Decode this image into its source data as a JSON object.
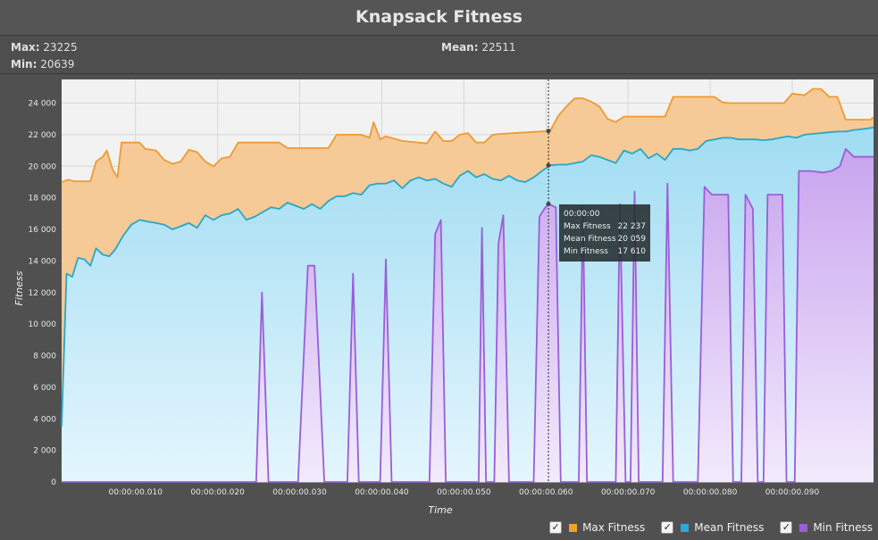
{
  "title": "Knapsack Fitness",
  "stats": {
    "max_label": "Max:",
    "max_value": "23225",
    "min_label": "Min:",
    "min_value": "20639",
    "mean_label": "Mean:",
    "mean_value": "22511"
  },
  "tooltip": {
    "time": "00:00:00",
    "max_label": "Max Fitness",
    "max_value": "22 237",
    "mean_label": "Mean Fitness",
    "mean_value": "20 059",
    "min_label": "Min Fitness",
    "min_value": "17 610"
  },
  "legend": [
    {
      "label": "Max Fitness",
      "color": "#f0a030"
    },
    {
      "label": "Mean Fitness",
      "color": "#2ca8d8"
    },
    {
      "label": "Min Fitness",
      "color": "#9a5ed8"
    }
  ],
  "colors": {
    "max_line": "#ee9a35",
    "max_fill": "#f6ca96",
    "mean_line": "#2aa6c4",
    "mean_fill": "#a6e0f4",
    "min_line": "#9a5ed8",
    "min_fill": "#d2b4f0",
    "plot_bg": "#f2f2f2",
    "grid": "#d6d6d6"
  },
  "chart_data": {
    "type": "area",
    "xlabel": "Time",
    "ylabel": "Fitness",
    "xlim": [
      0.001,
      0.0999
    ],
    "ylim": [
      0,
      25500
    ],
    "grid": true,
    "legend_position": "bottom-right",
    "x_ticks": [
      0.01,
      0.02,
      0.03,
      0.04,
      0.05,
      0.06,
      0.07,
      0.08,
      0.09
    ],
    "x_tick_labels": [
      "00:00:00.010",
      "00:00:00.020",
      "00:00:00.030",
      "00:00:00.040",
      "00:00:00.050",
      "00:00:00.060",
      "00:00:00.070",
      "00:00:00.080",
      "00:00:00.090"
    ],
    "y_ticks": [
      0,
      2000,
      4000,
      6000,
      8000,
      10000,
      12000,
      14000,
      16000,
      18000,
      20000,
      22000,
      24000
    ],
    "y_tick_labels": [
      "0",
      "2 000",
      "4 000",
      "6 000",
      "8 000",
      "10 000",
      "12 000",
      "14 000",
      "16 000",
      "18 000",
      "20 000",
      "22 000",
      "24 000"
    ],
    "cursor_x": 0.0603,
    "series": [
      {
        "name": "Max Fitness",
        "points": [
          [
            0.001,
            19000
          ],
          [
            0.0018,
            19150
          ],
          [
            0.0025,
            19050
          ],
          [
            0.0045,
            19050
          ],
          [
            0.0052,
            20300
          ],
          [
            0.006,
            20600
          ],
          [
            0.0065,
            21000
          ],
          [
            0.0072,
            19800
          ],
          [
            0.0078,
            19300
          ],
          [
            0.0083,
            21500
          ],
          [
            0.0105,
            21500
          ],
          [
            0.0112,
            21100
          ],
          [
            0.0125,
            21000
          ],
          [
            0.0135,
            20400
          ],
          [
            0.0145,
            20150
          ],
          [
            0.0155,
            20300
          ],
          [
            0.0165,
            21050
          ],
          [
            0.0175,
            20900
          ],
          [
            0.0185,
            20300
          ],
          [
            0.0195,
            20000
          ],
          [
            0.0205,
            20500
          ],
          [
            0.0215,
            20600
          ],
          [
            0.0225,
            21500
          ],
          [
            0.0275,
            21500
          ],
          [
            0.0285,
            21150
          ],
          [
            0.0335,
            21150
          ],
          [
            0.0345,
            22000
          ],
          [
            0.0375,
            22000
          ],
          [
            0.0385,
            21800
          ],
          [
            0.039,
            22800
          ],
          [
            0.0398,
            21700
          ],
          [
            0.0405,
            21900
          ],
          [
            0.0425,
            21600
          ],
          [
            0.0445,
            21500
          ],
          [
            0.0455,
            21450
          ],
          [
            0.0465,
            22200
          ],
          [
            0.0475,
            21600
          ],
          [
            0.0485,
            21600
          ],
          [
            0.0495,
            22000
          ],
          [
            0.0505,
            22100
          ],
          [
            0.0515,
            21500
          ],
          [
            0.0525,
            21500
          ],
          [
            0.0535,
            22000
          ],
          [
            0.0545,
            22050
          ],
          [
            0.0605,
            22237
          ],
          [
            0.0615,
            23200
          ],
          [
            0.0625,
            23800
          ],
          [
            0.0635,
            24300
          ],
          [
            0.0645,
            24300
          ],
          [
            0.0655,
            24100
          ],
          [
            0.0665,
            23800
          ],
          [
            0.0675,
            23000
          ],
          [
            0.0685,
            22800
          ],
          [
            0.0695,
            23150
          ],
          [
            0.0745,
            23150
          ],
          [
            0.0755,
            24400
          ],
          [
            0.0805,
            24400
          ],
          [
            0.0815,
            24050
          ],
          [
            0.0825,
            24000
          ],
          [
            0.089,
            24000
          ],
          [
            0.09,
            24600
          ],
          [
            0.0915,
            24500
          ],
          [
            0.0925,
            24900
          ],
          [
            0.0935,
            24900
          ],
          [
            0.0945,
            24400
          ],
          [
            0.0955,
            24400
          ],
          [
            0.0965,
            22950
          ],
          [
            0.0995,
            22950
          ],
          [
            0.0999,
            23100
          ]
        ]
      },
      {
        "name": "Mean Fitness",
        "points": [
          [
            0.001,
            3500
          ],
          [
            0.0016,
            13200
          ],
          [
            0.0023,
            13000
          ],
          [
            0.003,
            14200
          ],
          [
            0.0038,
            14100
          ],
          [
            0.0045,
            13700
          ],
          [
            0.0052,
            14800
          ],
          [
            0.006,
            14400
          ],
          [
            0.0068,
            14300
          ],
          [
            0.0075,
            14700
          ],
          [
            0.0085,
            15600
          ],
          [
            0.0095,
            16300
          ],
          [
            0.0105,
            16600
          ],
          [
            0.0115,
            16500
          ],
          [
            0.0125,
            16400
          ],
          [
            0.0135,
            16300
          ],
          [
            0.0145,
            16000
          ],
          [
            0.0155,
            16200
          ],
          [
            0.0165,
            16400
          ],
          [
            0.0175,
            16100
          ],
          [
            0.0185,
            16900
          ],
          [
            0.0195,
            16600
          ],
          [
            0.0205,
            16900
          ],
          [
            0.0215,
            17000
          ],
          [
            0.0225,
            17300
          ],
          [
            0.0235,
            16600
          ],
          [
            0.0245,
            16800
          ],
          [
            0.0255,
            17100
          ],
          [
            0.0265,
            17400
          ],
          [
            0.0275,
            17300
          ],
          [
            0.0285,
            17700
          ],
          [
            0.0295,
            17500
          ],
          [
            0.0305,
            17300
          ],
          [
            0.0315,
            17600
          ],
          [
            0.0325,
            17300
          ],
          [
            0.0335,
            17800
          ],
          [
            0.0345,
            18100
          ],
          [
            0.0355,
            18100
          ],
          [
            0.0365,
            18300
          ],
          [
            0.0375,
            18200
          ],
          [
            0.0385,
            18800
          ],
          [
            0.0395,
            18900
          ],
          [
            0.0405,
            18900
          ],
          [
            0.0415,
            19100
          ],
          [
            0.0425,
            18600
          ],
          [
            0.0435,
            19100
          ],
          [
            0.0445,
            19300
          ],
          [
            0.0455,
            19100
          ],
          [
            0.0465,
            19200
          ],
          [
            0.0475,
            18900
          ],
          [
            0.0485,
            18700
          ],
          [
            0.0495,
            19400
          ],
          [
            0.0505,
            19700
          ],
          [
            0.0515,
            19300
          ],
          [
            0.0525,
            19500
          ],
          [
            0.0535,
            19200
          ],
          [
            0.0545,
            19100
          ],
          [
            0.0555,
            19400
          ],
          [
            0.0565,
            19100
          ],
          [
            0.0575,
            19000
          ],
          [
            0.0585,
            19300
          ],
          [
            0.0595,
            19700
          ],
          [
            0.0605,
            20059
          ],
          [
            0.0615,
            20100
          ],
          [
            0.0625,
            20100
          ],
          [
            0.0635,
            20200
          ],
          [
            0.0645,
            20300
          ],
          [
            0.0655,
            20700
          ],
          [
            0.0665,
            20600
          ],
          [
            0.0675,
            20400
          ],
          [
            0.0685,
            20200
          ],
          [
            0.0695,
            21000
          ],
          [
            0.0705,
            20800
          ],
          [
            0.0715,
            21100
          ],
          [
            0.0725,
            20500
          ],
          [
            0.0735,
            20800
          ],
          [
            0.0745,
            20400
          ],
          [
            0.0755,
            21100
          ],
          [
            0.0765,
            21100
          ],
          [
            0.0775,
            21000
          ],
          [
            0.0785,
            21100
          ],
          [
            0.0795,
            21600
          ],
          [
            0.0805,
            21700
          ],
          [
            0.0815,
            21800
          ],
          [
            0.0825,
            21800
          ],
          [
            0.0835,
            21700
          ],
          [
            0.0845,
            21700
          ],
          [
            0.0855,
            21700
          ],
          [
            0.0865,
            21650
          ],
          [
            0.0875,
            21700
          ],
          [
            0.0885,
            21800
          ],
          [
            0.0895,
            21900
          ],
          [
            0.0905,
            21800
          ],
          [
            0.0915,
            22000
          ],
          [
            0.0925,
            22050
          ],
          [
            0.0935,
            22100
          ],
          [
            0.0945,
            22150
          ],
          [
            0.0955,
            22200
          ],
          [
            0.0965,
            22200
          ],
          [
            0.0975,
            22300
          ],
          [
            0.0985,
            22350
          ],
          [
            0.0999,
            22450
          ]
        ]
      },
      {
        "name": "Min Fitness",
        "points": [
          [
            0.001,
            0
          ],
          [
            0.0247,
            0
          ],
          [
            0.0254,
            12000
          ],
          [
            0.0262,
            0
          ],
          [
            0.0298,
            0
          ],
          [
            0.031,
            13700
          ],
          [
            0.0318,
            13700
          ],
          [
            0.033,
            0
          ],
          [
            0.0358,
            0
          ],
          [
            0.0365,
            13200
          ],
          [
            0.0372,
            0
          ],
          [
            0.0398,
            0
          ],
          [
            0.0405,
            14100
          ],
          [
            0.0412,
            0
          ],
          [
            0.0458,
            0
          ],
          [
            0.0465,
            15700
          ],
          [
            0.0472,
            16600
          ],
          [
            0.0478,
            0
          ],
          [
            0.0518,
            0
          ],
          [
            0.0522,
            16100
          ],
          [
            0.0527,
            0
          ],
          [
            0.0537,
            0
          ],
          [
            0.0542,
            15100
          ],
          [
            0.0548,
            16900
          ],
          [
            0.0555,
            0
          ],
          [
            0.0585,
            0
          ],
          [
            0.0592,
            16800
          ],
          [
            0.0598,
            17300
          ],
          [
            0.0603,
            17610
          ],
          [
            0.0612,
            17400
          ],
          [
            0.0618,
            0
          ],
          [
            0.064,
            0
          ],
          [
            0.0645,
            17400
          ],
          [
            0.065,
            0
          ],
          [
            0.0685,
            0
          ],
          [
            0.069,
            17600
          ],
          [
            0.0697,
            0
          ],
          [
            0.0703,
            0
          ],
          [
            0.0708,
            18400
          ],
          [
            0.0713,
            0
          ],
          [
            0.0742,
            0
          ],
          [
            0.0748,
            18900
          ],
          [
            0.0755,
            0
          ],
          [
            0.0785,
            0
          ],
          [
            0.0793,
            18700
          ],
          [
            0.0802,
            18200
          ],
          [
            0.0822,
            18200
          ],
          [
            0.0828,
            0
          ],
          [
            0.0838,
            0
          ],
          [
            0.0843,
            18200
          ],
          [
            0.0852,
            17300
          ],
          [
            0.0858,
            0
          ],
          [
            0.0865,
            0
          ],
          [
            0.087,
            18200
          ],
          [
            0.0888,
            18200
          ],
          [
            0.0893,
            0
          ],
          [
            0.0903,
            0
          ],
          [
            0.0908,
            19700
          ],
          [
            0.0922,
            19700
          ],
          [
            0.0938,
            19600
          ],
          [
            0.0948,
            19700
          ],
          [
            0.0958,
            20000
          ],
          [
            0.0965,
            21100
          ],
          [
            0.0975,
            20600
          ],
          [
            0.0999,
            20600
          ]
        ]
      }
    ]
  }
}
